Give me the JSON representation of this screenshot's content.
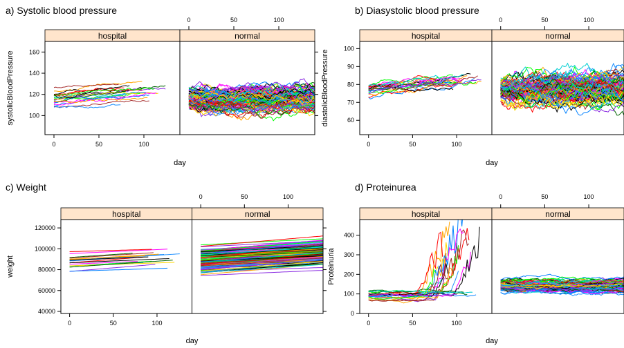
{
  "figure": {
    "panels_note": "four trellis (lattice) panels, each split into hospital / normal strips"
  },
  "chart_data": [
    {
      "id": "a",
      "type": "line",
      "title": "a) Systolic blood pressure",
      "xlabel": "day",
      "ylabel": "systolicBloodPressure",
      "panels": [
        "hospital",
        "normal"
      ],
      "xlim": [
        -10,
        140
      ],
      "ylim": [
        82,
        170
      ],
      "x_ticks": [
        0,
        50,
        100
      ],
      "y_ticks": [
        100,
        120,
        140,
        160
      ],
      "y_tick_labels": [
        "100",
        "120",
        "140",
        "160"
      ],
      "y_axis_side": "left",
      "grid": false,
      "series": {
        "hospital": {
          "count": 20,
          "length": 130,
          "base": 118,
          "spread": 14,
          "trend": 10,
          "noise": 1.6
        },
        "normal": {
          "count": 120,
          "length": 140,
          "base": 116,
          "spread": 12,
          "trend": 0,
          "noise": 5
        }
      }
    },
    {
      "id": "b",
      "type": "line",
      "title": "b) Diasystolic blood pressure",
      "xlabel": "day",
      "ylabel": "diastolicBloodPressure",
      "panels": [
        "hospital",
        "normal"
      ],
      "xlim": [
        -10,
        140
      ],
      "ylim": [
        52,
        104
      ],
      "x_ticks": [
        0,
        50,
        100
      ],
      "y_ticks": [
        60,
        70,
        80,
        90,
        100
      ],
      "y_tick_labels": [
        "60",
        "70",
        "80",
        "90",
        "100"
      ],
      "y_axis_side": "left",
      "grid": false,
      "series": {
        "hospital": {
          "count": 22,
          "length": 130,
          "base": 77,
          "spread": 6,
          "trend": 6,
          "noise": 1.4
        },
        "normal": {
          "count": 120,
          "length": 140,
          "base": 77,
          "spread": 7,
          "trend": 0,
          "noise": 4
        }
      }
    },
    {
      "id": "c",
      "type": "line",
      "title": "c) Weight",
      "xlabel": "day",
      "ylabel": "weight",
      "panels": [
        "hospital",
        "normal"
      ],
      "xlim": [
        -10,
        140
      ],
      "ylim": [
        38000,
        128000
      ],
      "x_ticks": [
        0,
        50,
        100
      ],
      "y_ticks": [
        40000,
        60000,
        80000,
        100000,
        120000
      ],
      "y_tick_labels": [
        "40000",
        "60000",
        "80000",
        "100000",
        "120000"
      ],
      "y_axis_side": "left",
      "grid": false,
      "series": {
        "hospital": {
          "count": 18,
          "length": 130,
          "base": 86000,
          "spread": 14000,
          "trend": 6000,
          "noise": 0
        },
        "normal": {
          "count": 120,
          "length": 140,
          "base": 90000,
          "spread": 20000,
          "trend": 7000,
          "noise": 0
        }
      }
    },
    {
      "id": "d",
      "type": "line",
      "title": "d) Proteinurea",
      "xlabel": "day",
      "ylabel": "Proteinuria",
      "panels": [
        "hospital",
        "normal"
      ],
      "xlim": [
        -10,
        140
      ],
      "ylim": [
        0,
        480
      ],
      "x_ticks": [
        0,
        50,
        100
      ],
      "y_ticks": [
        0,
        100,
        200,
        300,
        400
      ],
      "y_tick_labels": [
        "0",
        "100",
        "200",
        "300",
        "400"
      ],
      "y_axis_side": "left",
      "grid": false,
      "series": {
        "hospital": {
          "count": 22,
          "length": 130,
          "base": 95,
          "spread": 40,
          "trend": 0,
          "noise": 6
        },
        "normal": {
          "count": 120,
          "length": 140,
          "base": 140,
          "spread": 40,
          "trend": 0,
          "noise": 10
        }
      }
    }
  ],
  "colors": {
    "strip_bg": "#ffe5cc",
    "palette": [
      "#0080ff",
      "#ff00ff",
      "#006400",
      "#ff0000",
      "#ffa500",
      "#000000",
      "#00ff00",
      "#a52a2a",
      "#00ced1",
      "#8a2be2",
      "#ffd700",
      "#1e90ff"
    ]
  }
}
